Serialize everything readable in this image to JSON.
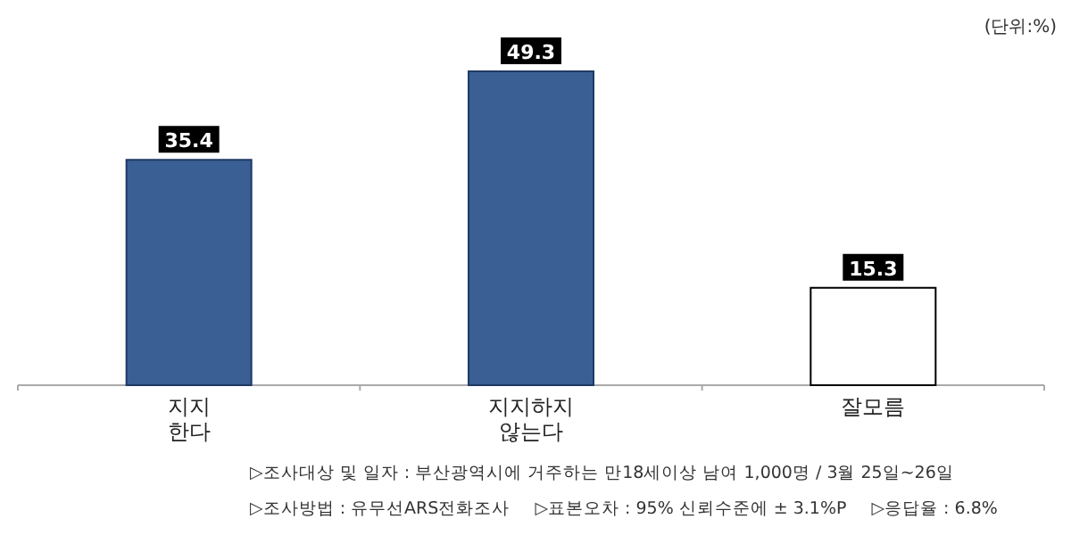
{
  "chart_data": {
    "type": "bar",
    "categories": [
      "지지\n한다",
      "지지하지\n않는다",
      "잘모름"
    ],
    "values": [
      35.4,
      49.3,
      15.3
    ],
    "colors": [
      "#3a5f95",
      "#3a5f95",
      "#ffffff"
    ],
    "data_labels": true,
    "annotations": [
      "(단위:%)",
      "▷조사대상 및 일자 : 부산광역시에 거주하는 만18세이상 남여 1,000명  /  3월 25일~26일",
      "▷조사방법 : 유무선ARS전화조사",
      "▷표본오차 : 95% 신뢰수준에 ± 3.1%P",
      "▷응답율 : 6.8%"
    ]
  }
}
